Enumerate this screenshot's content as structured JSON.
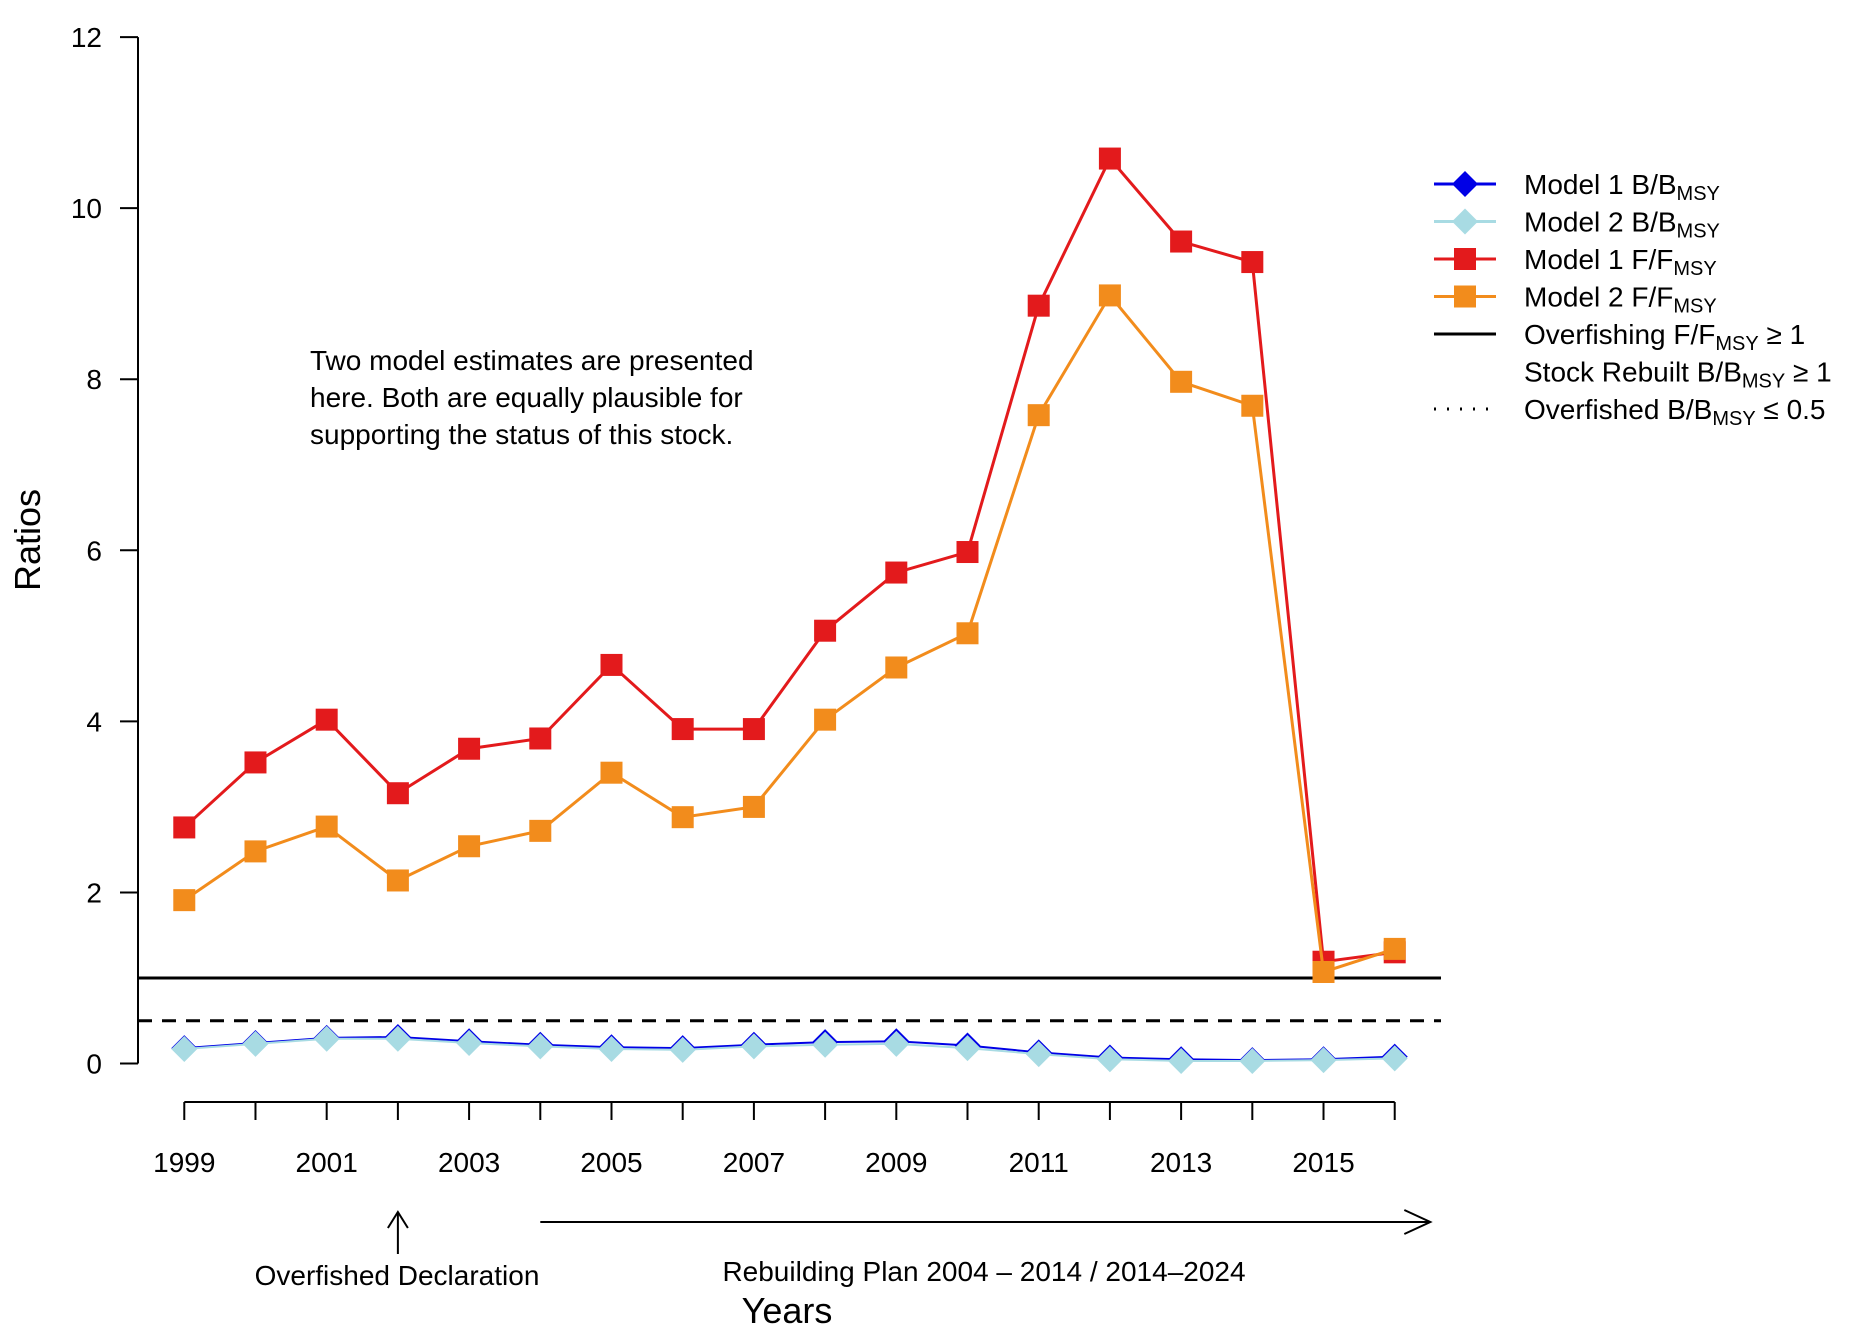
{
  "chart_data": {
    "type": "line",
    "title": "",
    "xlabel": "Years",
    "ylabel": "Ratios",
    "xlim": [
      1998.35,
      2016.65
    ],
    "ylim": [
      -0.45,
      12.2
    ],
    "x_ticks": [
      1999,
      2001,
      2003,
      2005,
      2007,
      2009,
      2011,
      2013,
      2015
    ],
    "x_tick_labels": [
      "1999",
      "2001",
      "2003",
      "2005",
      "2007",
      "2009",
      "2011",
      "2013",
      "2015"
    ],
    "y_ticks": [
      0,
      2,
      4,
      6,
      8,
      10,
      12
    ],
    "y_tick_labels": [
      "0",
      "2",
      "4",
      "6",
      "8",
      "10",
      "12"
    ],
    "grid": false,
    "x": [
      1999,
      2000,
      2001,
      2002,
      2003,
      2004,
      2005,
      2006,
      2007,
      2008,
      2009,
      2010,
      2011,
      2012,
      2013,
      2014,
      2015,
      2016
    ],
    "series": [
      {
        "name": "Model 1 F/F_MSY",
        "color": "#e31a1c",
        "marker": "square",
        "values": [
          2.76,
          3.52,
          4.02,
          3.16,
          3.68,
          3.8,
          4.66,
          3.91,
          3.91,
          5.06,
          5.74,
          5.98,
          8.86,
          10.58,
          9.61,
          9.37,
          1.19,
          1.3
        ]
      },
      {
        "name": "Model 2 F/F_MSY",
        "color": "#f28c1c",
        "marker": "square",
        "values": [
          1.91,
          2.48,
          2.77,
          2.14,
          2.54,
          2.72,
          3.4,
          2.88,
          3.0,
          4.02,
          4.63,
          5.03,
          7.58,
          8.98,
          7.97,
          7.69,
          1.07,
          1.34
        ]
      },
      {
        "name": "Model 1 B/B_MSY",
        "color": "#0000e6",
        "marker": "diamond",
        "values": [
          0.18,
          0.24,
          0.3,
          0.31,
          0.26,
          0.22,
          0.19,
          0.18,
          0.22,
          0.25,
          0.26,
          0.21,
          0.13,
          0.07,
          0.05,
          0.04,
          0.05,
          0.08
        ]
      },
      {
        "name": "Model 2 B/B_MSY",
        "color": "#a8dbe3",
        "marker": "diamond",
        "values": [
          0.17,
          0.23,
          0.29,
          0.29,
          0.24,
          0.2,
          0.17,
          0.16,
          0.2,
          0.22,
          0.23,
          0.18,
          0.11,
          0.05,
          0.03,
          0.03,
          0.04,
          0.06
        ]
      }
    ],
    "reference_lines": [
      {
        "y": 1.0,
        "style": "solid",
        "color": "#000000"
      },
      {
        "y": 0.5,
        "style": "dashed",
        "color": "#000000"
      }
    ],
    "legend": {
      "position": "top-right outside",
      "entries": [
        {
          "main": "Model 1 B/B",
          "sub": "MSY",
          "tail": "",
          "symbol": "line-diamond",
          "color": "#0000e6"
        },
        {
          "main": "Model 2 B/B",
          "sub": "MSY",
          "tail": "",
          "symbol": "line-diamond",
          "color": "#a8dbe3"
        },
        {
          "main": "Model 1 F/F",
          "sub": "MSY",
          "tail": "",
          "symbol": "line-square",
          "color": "#e31a1c"
        },
        {
          "main": "Model 2 F/F",
          "sub": "MSY",
          "tail": "",
          "symbol": "line-square",
          "color": "#f28c1c"
        },
        {
          "main": "Overfishing F/F",
          "sub": "MSY",
          "tail": " ≥ 1",
          "symbol": "solid",
          "color": "#000000"
        },
        {
          "main": "Stock Rebuilt B/B",
          "sub": "MSY",
          "tail": " ≥ 1",
          "symbol": "none",
          "color": "#000000"
        },
        {
          "main": "Overfished B/B",
          "sub": "MSY",
          "tail": " ≤ 0.5",
          "symbol": "dotted",
          "color": "#000000"
        }
      ]
    },
    "annotations": {
      "note_lines": [
        "Two model estimates are presented",
        "here. Both are equally plausible for",
        "supporting the status of this stock."
      ],
      "overfished_declaration": {
        "label": "Overfished Declaration",
        "year": 2002
      },
      "rebuilding_plan": {
        "label": "Rebuilding Plan 2004 – 2014 / 2014–2024",
        "from_year": 2004,
        "to_year": 2016.5
      }
    }
  }
}
